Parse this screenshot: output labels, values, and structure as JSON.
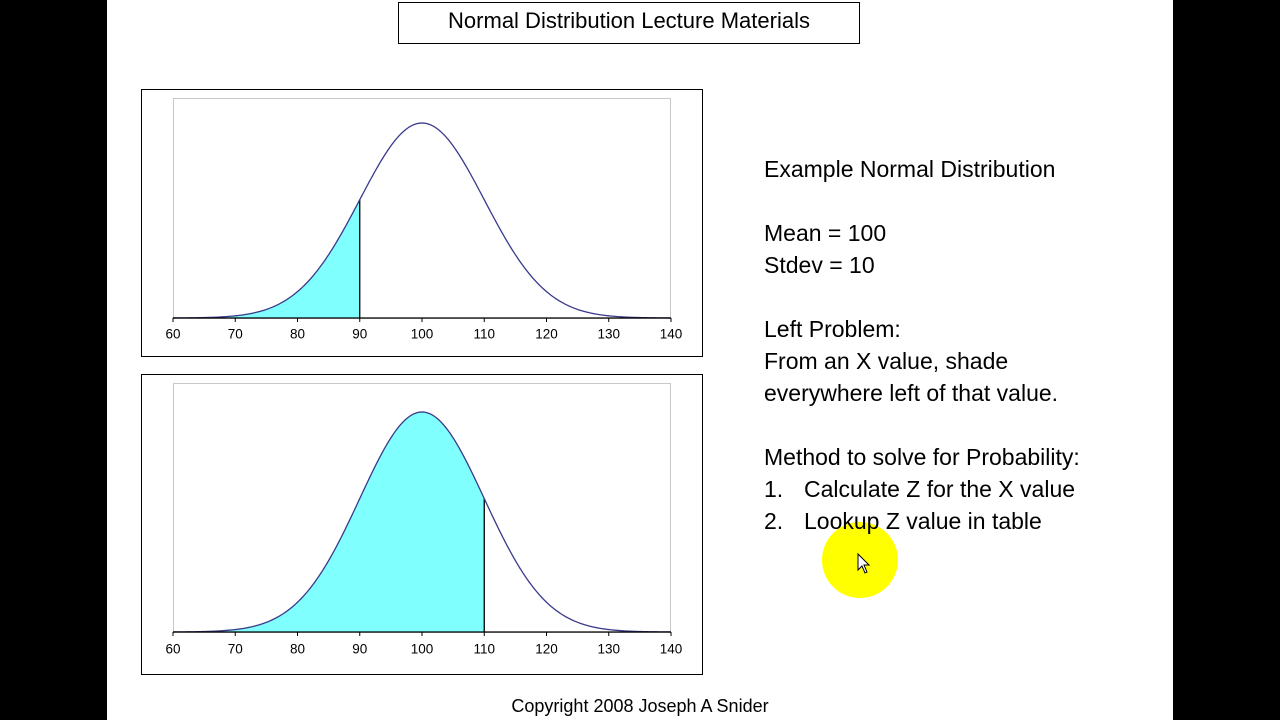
{
  "title": "Normal Distribution Lecture Materials",
  "panel": {
    "heading": "Example Normal Distribution",
    "mean_line": "Mean = 100",
    "stdev_line": "Stdev = 10",
    "problem_heading": "Left Problem:",
    "problem_lines": [
      "From an X value, shade",
      "everywhere left of that value."
    ],
    "method_heading": "Method to solve for Probability:",
    "steps": [
      {
        "number": "1.",
        "text": "Calculate Z for the X value"
      },
      {
        "number": "2.",
        "text": "Lookup Z value in table"
      }
    ]
  },
  "copyright": "Copyright 2008 Joseph A Snider",
  "chart_data": [
    {
      "type": "area",
      "mean": 100,
      "stdev": 10,
      "shade_to": 90,
      "xlim": [
        60,
        140
      ],
      "xticks": [
        60,
        70,
        80,
        90,
        100,
        110,
        120,
        130,
        140
      ],
      "color": "#80ffff",
      "line_color": "#3a3a8c"
    },
    {
      "type": "area",
      "mean": 100,
      "stdev": 10,
      "shade_to": 110,
      "xlim": [
        60,
        140
      ],
      "xticks": [
        60,
        70,
        80,
        90,
        100,
        110,
        120,
        130,
        140
      ],
      "color": "#80ffff",
      "line_color": "#3a3a8c"
    }
  ]
}
